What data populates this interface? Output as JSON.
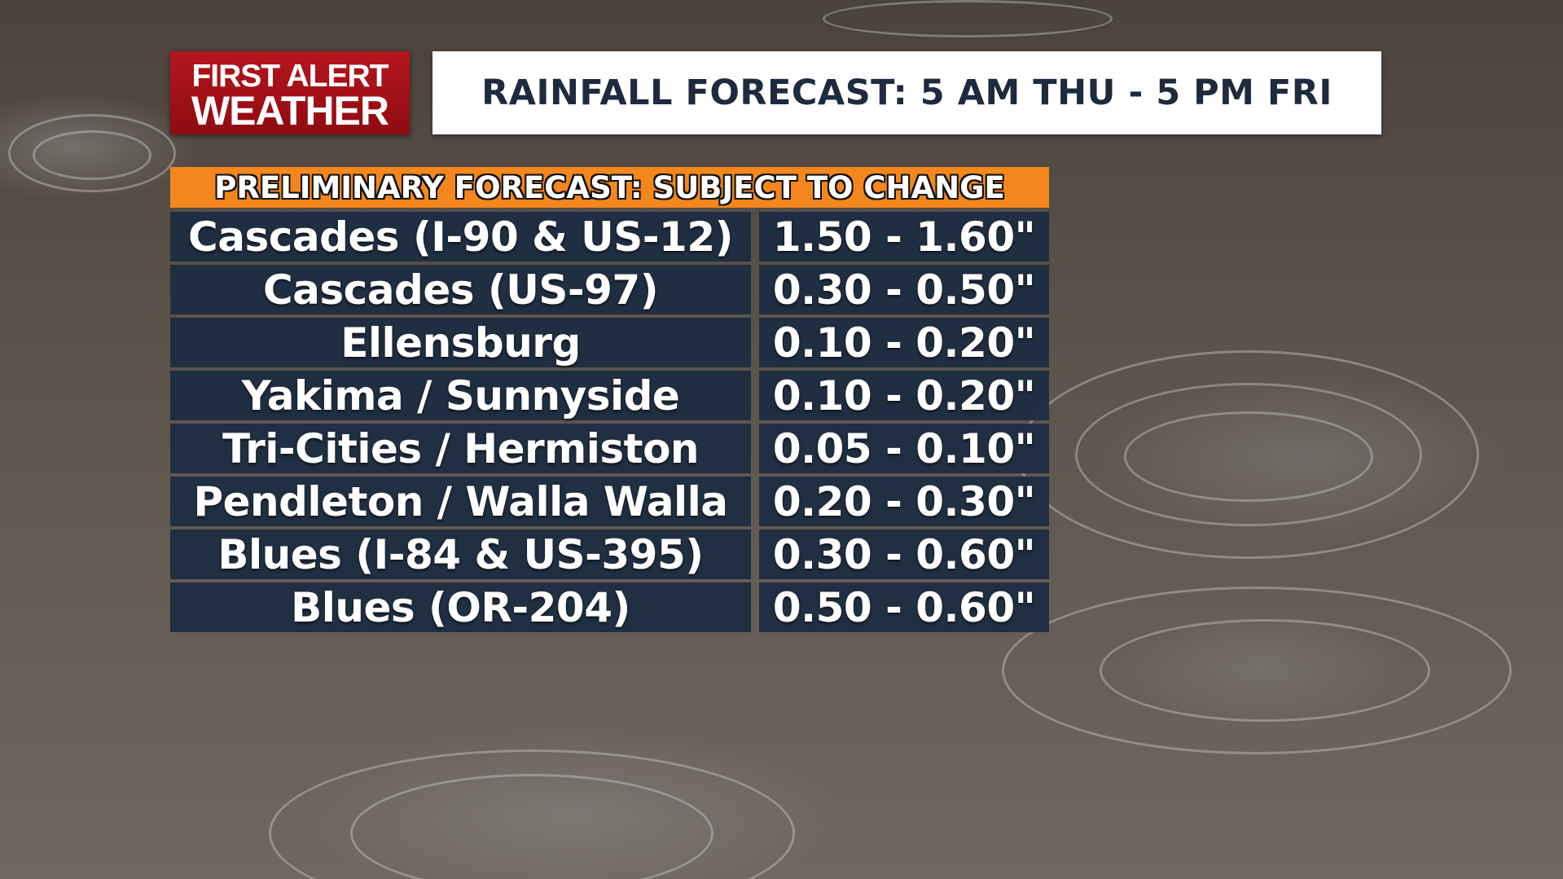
{
  "logo": {
    "line1": "FIRST ALERT",
    "line2": "WEATHER"
  },
  "title": "RAINFALL FORECAST: 5 AM THU - 5 PM FRI",
  "banner": "PRELIMINARY FORECAST: SUBJECT TO CHANGE",
  "rows": [
    {
      "location": "Cascades (I-90 & US-12)",
      "amount": "1.50 - 1.60\""
    },
    {
      "location": "Cascades (US-97)",
      "amount": "0.30 - 0.50\""
    },
    {
      "location": "Ellensburg",
      "amount": "0.10 - 0.20\""
    },
    {
      "location": "Yakima / Sunnyside",
      "amount": "0.10 - 0.20\""
    },
    {
      "location": "Tri-Cities / Hermiston",
      "amount": "0.05 - 0.10\""
    },
    {
      "location": "Pendleton / Walla Walla",
      "amount": "0.20 - 0.30\""
    },
    {
      "location": "Blues (I-84 & US-395)",
      "amount": "0.30 - 0.60\""
    },
    {
      "location": "Blues (OR-204)",
      "amount": "0.50 - 0.60\""
    }
  ],
  "colors": {
    "logo_red": "#b5161e",
    "banner_orange": "#f3861c",
    "table_navy": "#1e2d42",
    "title_text": "#1e2b3e"
  },
  "icons": {
    "background": "rain-puddle-photo"
  }
}
